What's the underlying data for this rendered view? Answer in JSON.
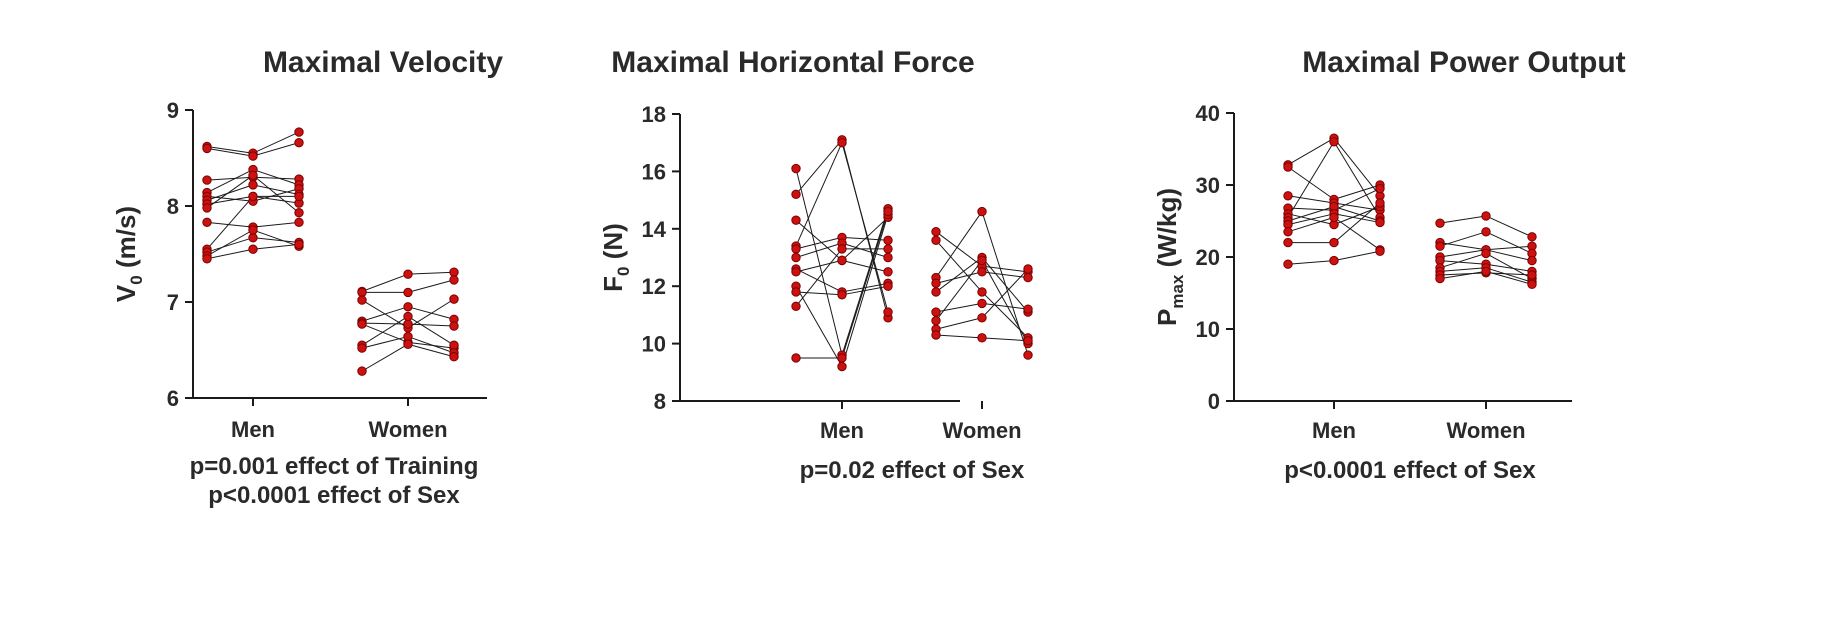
{
  "colors": {
    "marker": "#cc1111",
    "marker_edge": "#7a0000",
    "axis": "#1a1a1a",
    "line": "#1a1a1a"
  },
  "chart_data": [
    {
      "type": "scatter",
      "title": "Maximal Velocity",
      "ylabel_main": "V",
      "ylabel_sub": "0",
      "ylabel_unit": "(m/s)",
      "ylim": [
        6,
        9
      ],
      "yticks": [
        6,
        7,
        8,
        9
      ],
      "categories": [
        "Men",
        "Women"
      ],
      "notes": [
        "p=0.001 effect of Training",
        "p<0.0001 effect of Sex"
      ],
      "groups": [
        {
          "name": "Men",
          "pairs": [
            [
              8.62,
              8.55
            ],
            [
              8.6,
              8.52
            ],
            [
              8.27,
              8.3
            ],
            [
              8.14,
              8.38
            ],
            [
              8.1,
              8.05
            ],
            [
              8.06,
              8.22
            ],
            [
              8.02,
              8.1
            ],
            [
              7.98,
              8.32
            ],
            [
              7.83,
              7.78
            ],
            [
              7.55,
              8.1
            ],
            [
              7.52,
              7.67
            ],
            [
              7.48,
              7.75
            ],
            [
              7.45,
              7.55
            ]
          ],
          "pairs2": [
            [
              8.55,
              8.77
            ],
            [
              8.52,
              8.66
            ],
            [
              8.3,
              8.28
            ],
            [
              8.38,
              8.22
            ],
            [
              8.05,
              8.18
            ],
            [
              8.22,
              8.12
            ],
            [
              8.1,
              8.03
            ],
            [
              8.32,
              7.93
            ],
            [
              7.78,
              7.83
            ],
            [
              8.1,
              8.1
            ],
            [
              7.67,
              7.62
            ],
            [
              7.75,
              7.58
            ],
            [
              7.55,
              7.6
            ]
          ]
        },
        {
          "name": "Women",
          "pairs": [
            [
              7.11,
              7.29
            ],
            [
              7.1,
              7.1
            ],
            [
              7.02,
              6.73
            ],
            [
              6.8,
              6.95
            ],
            [
              6.78,
              6.77
            ],
            [
              6.77,
              6.58
            ],
            [
              6.55,
              6.85
            ],
            [
              6.52,
              6.64
            ],
            [
              6.28,
              6.56
            ]
          ],
          "pairs2": [
            [
              7.29,
              7.31
            ],
            [
              7.1,
              7.23
            ],
            [
              6.73,
              7.03
            ],
            [
              6.95,
              6.82
            ],
            [
              6.77,
              6.75
            ],
            [
              6.58,
              6.52
            ],
            [
              6.85,
              6.55
            ],
            [
              6.64,
              6.47
            ],
            [
              6.56,
              6.43
            ]
          ]
        }
      ]
    },
    {
      "type": "scatter",
      "title": "Maximal Horizontal Force",
      "ylabel_main": "F",
      "ylabel_sub": "0",
      "ylabel_unit": "(N)",
      "ylim": [
        8,
        18
      ],
      "yticks": [
        8,
        10,
        12,
        14,
        16,
        18
      ],
      "categories": [
        "Men",
        "Women"
      ],
      "notes": [
        "p=0.02 effect of Sex"
      ],
      "groups": [
        {
          "name": "Men",
          "pairs": [
            [
              16.1,
              9.6
            ],
            [
              15.2,
              17.1
            ],
            [
              14.3,
              12.9
            ],
            [
              13.4,
              17.0
            ],
            [
              13.3,
              13.7
            ],
            [
              13.0,
              13.5
            ],
            [
              12.6,
              11.8
            ],
            [
              12.5,
              12.9
            ],
            [
              12.0,
              9.2
            ],
            [
              11.8,
              11.7
            ],
            [
              11.3,
              13.3
            ],
            [
              9.5,
              9.5
            ]
          ],
          "pairs2": [
            [
              9.6,
              14.7
            ],
            [
              17.1,
              10.9
            ],
            [
              12.9,
              14.4
            ],
            [
              17.0,
              11.1
            ],
            [
              13.7,
              13.6
            ],
            [
              13.5,
              13.0
            ],
            [
              11.8,
              12.1
            ],
            [
              12.9,
              12.5
            ],
            [
              9.2,
              14.5
            ],
            [
              11.7,
              12.0
            ],
            [
              13.3,
              13.3
            ],
            [
              9.5,
              14.6
            ]
          ]
        },
        {
          "name": "Women",
          "pairs": [
            [
              13.9,
              12.7
            ],
            [
              13.6,
              11.8
            ],
            [
              12.3,
              14.6
            ],
            [
              12.1,
              12.5
            ],
            [
              11.8,
              13.0
            ],
            [
              11.1,
              11.4
            ],
            [
              10.8,
              12.9
            ],
            [
              10.5,
              10.9
            ],
            [
              10.3,
              10.2
            ]
          ],
          "pairs2": [
            [
              12.7,
              12.5
            ],
            [
              11.8,
              10.2
            ],
            [
              14.6,
              9.6
            ],
            [
              12.5,
              12.3
            ],
            [
              13.0,
              11.1
            ],
            [
              11.4,
              11.2
            ],
            [
              12.9,
              10.0
            ],
            [
              10.9,
              12.6
            ],
            [
              10.2,
              10.1
            ]
          ]
        }
      ]
    },
    {
      "type": "scatter",
      "title": "Maximal Power Output",
      "ylabel_main": "P",
      "ylabel_sub": "max",
      "ylabel_unit": "(W/kg)",
      "ylim": [
        0,
        40
      ],
      "yticks": [
        0,
        10,
        20,
        30,
        40
      ],
      "categories": [
        "Men",
        "Women"
      ],
      "notes": [
        "p<0.0001 effect of Sex"
      ],
      "groups": [
        {
          "name": "Men",
          "pairs": [
            [
              32.8,
              36.5
            ],
            [
              32.5,
              28.0
            ],
            [
              28.5,
              27.5
            ],
            [
              26.8,
              26.5
            ],
            [
              26.0,
              24.5
            ],
            [
              25.5,
              36.0
            ],
            [
              25.0,
              27.0
            ],
            [
              24.5,
              26.0
            ],
            [
              23.5,
              25.5
            ],
            [
              22.0,
              22.0
            ],
            [
              19.0,
              19.5
            ]
          ],
          "pairs2": [
            [
              36.5,
              28.5
            ],
            [
              28.0,
              30.0
            ],
            [
              27.5,
              26.5
            ],
            [
              26.5,
              29.5
            ],
            [
              24.5,
              27.0
            ],
            [
              36.0,
              25.5
            ],
            [
              27.0,
              25.0
            ],
            [
              26.0,
              24.8
            ],
            [
              25.5,
              21.0
            ],
            [
              22.0,
              27.5
            ],
            [
              19.5,
              20.8
            ]
          ]
        },
        {
          "name": "Women",
          "pairs": [
            [
              24.7,
              25.7
            ],
            [
              22.0,
              21.0
            ],
            [
              21.5,
              23.5
            ],
            [
              20.0,
              21.0
            ],
            [
              19.5,
              19.0
            ],
            [
              18.5,
              20.5
            ],
            [
              18.0,
              18.5
            ],
            [
              17.5,
              17.8
            ],
            [
              17.0,
              18.0
            ]
          ],
          "pairs2": [
            [
              25.7,
              22.8
            ],
            [
              21.0,
              21.5
            ],
            [
              23.5,
              20.5
            ],
            [
              21.0,
              19.5
            ],
            [
              19.0,
              18.0
            ],
            [
              20.5,
              17.0
            ],
            [
              18.5,
              16.5
            ],
            [
              17.8,
              17.5
            ],
            [
              18.0,
              16.2
            ]
          ]
        }
      ]
    }
  ]
}
